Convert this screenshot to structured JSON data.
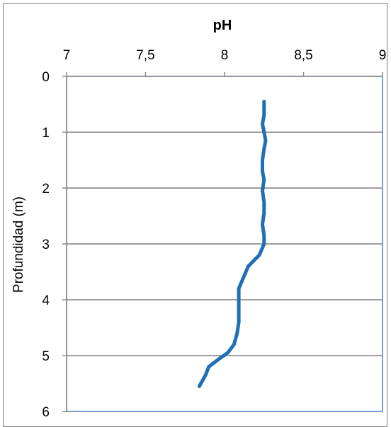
{
  "chart_data": {
    "type": "line",
    "title": "pH",
    "xlabel": "",
    "ylabel": "Profundidad (m)",
    "xlim": [
      7,
      9
    ],
    "ylim": [
      0,
      6
    ],
    "x_axis_position": "top",
    "y_axis_inverted": true,
    "grid": "horizontal",
    "legend": "none",
    "x_ticks": [
      "7",
      "7,5",
      "8",
      "8,5",
      "9"
    ],
    "y_ticks": [
      "0",
      "1",
      "2",
      "3",
      "4",
      "5",
      "6"
    ],
    "colors": {
      "series": "#1f6fb5",
      "axis": "#888888",
      "plot_border": "#4a7ebb",
      "grid": "#7f7f7f"
    },
    "series": [
      {
        "points": [
          {
            "x": 8.25,
            "y": 0.45
          },
          {
            "x": 8.25,
            "y": 0.7
          },
          {
            "x": 8.24,
            "y": 0.85
          },
          {
            "x": 8.25,
            "y": 1.0
          },
          {
            "x": 8.26,
            "y": 1.15
          },
          {
            "x": 8.25,
            "y": 1.3
          },
          {
            "x": 8.24,
            "y": 1.5
          },
          {
            "x": 8.24,
            "y": 1.7
          },
          {
            "x": 8.25,
            "y": 1.85
          },
          {
            "x": 8.24,
            "y": 2.05
          },
          {
            "x": 8.25,
            "y": 2.25
          },
          {
            "x": 8.25,
            "y": 2.45
          },
          {
            "x": 8.24,
            "y": 2.65
          },
          {
            "x": 8.25,
            "y": 2.85
          },
          {
            "x": 8.25,
            "y": 3.0
          },
          {
            "x": 8.22,
            "y": 3.2
          },
          {
            "x": 8.15,
            "y": 3.4
          },
          {
            "x": 8.12,
            "y": 3.6
          },
          {
            "x": 8.09,
            "y": 3.8
          },
          {
            "x": 8.09,
            "y": 4.1
          },
          {
            "x": 8.09,
            "y": 4.4
          },
          {
            "x": 8.08,
            "y": 4.6
          },
          {
            "x": 8.06,
            "y": 4.8
          },
          {
            "x": 8.02,
            "y": 4.95
          },
          {
            "x": 7.97,
            "y": 5.05
          },
          {
            "x": 7.9,
            "y": 5.2
          },
          {
            "x": 7.88,
            "y": 5.35
          },
          {
            "x": 7.84,
            "y": 5.55
          }
        ]
      }
    ]
  }
}
